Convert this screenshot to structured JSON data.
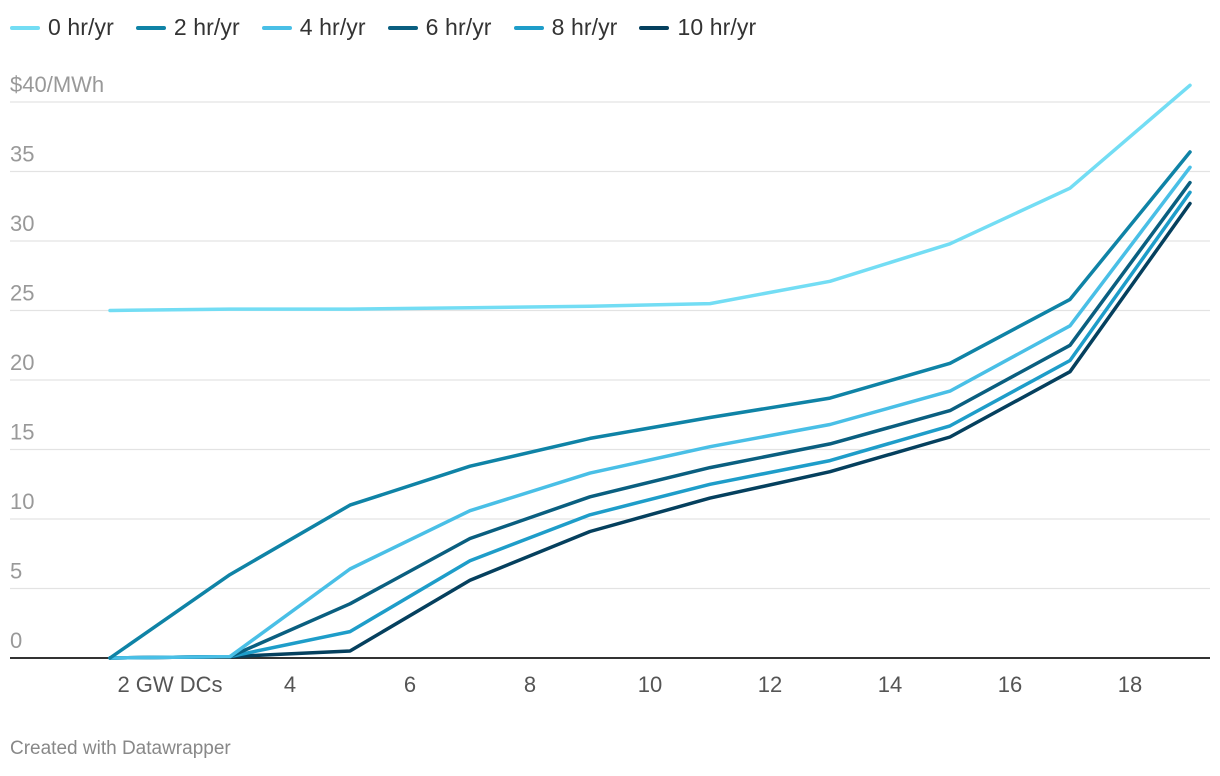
{
  "chart_data": {
    "type": "line",
    "title": "",
    "xlabel": "",
    "ylabel": "",
    "x": [
      1,
      3,
      5,
      7,
      9,
      11,
      13,
      15,
      17,
      19
    ],
    "xlim": [
      0,
      20
    ],
    "ylim": [
      0,
      40
    ],
    "y_ticks": [
      0,
      5,
      10,
      15,
      20,
      25,
      30,
      35,
      40
    ],
    "y_tick_labels": [
      "0",
      "5",
      "10",
      "15",
      "20",
      "25",
      "30",
      "35",
      "$40/MWh"
    ],
    "x_ticks": [
      2,
      4,
      6,
      8,
      10,
      12,
      14,
      16,
      18
    ],
    "x_tick_labels": [
      "2 GW DCs",
      "4",
      "6",
      "8",
      "10",
      "12",
      "14",
      "16",
      "18"
    ],
    "grid": true,
    "legend_position": "top-left",
    "series": [
      {
        "name": "0 hr/yr",
        "color": "#73DDF4",
        "values": [
          25.0,
          25.1,
          25.1,
          25.2,
          25.3,
          25.5,
          27.1,
          29.8,
          33.8,
          41.2
        ]
      },
      {
        "name": "2 hr/yr",
        "color": "#0F83A6",
        "values": [
          0.0,
          6.0,
          11.0,
          13.8,
          15.8,
          17.3,
          18.7,
          21.2,
          25.8,
          36.4
        ]
      },
      {
        "name": "4 hr/yr",
        "color": "#49BFE6",
        "values": [
          0.0,
          0.1,
          6.4,
          10.6,
          13.3,
          15.2,
          16.8,
          19.2,
          23.9,
          35.3
        ]
      },
      {
        "name": "6 hr/yr",
        "color": "#0A5F80",
        "values": [
          0.0,
          0.1,
          3.9,
          8.6,
          11.6,
          13.7,
          15.4,
          17.8,
          22.5,
          34.2
        ]
      },
      {
        "name": "8 hr/yr",
        "color": "#1E9DC9",
        "values": [
          0.0,
          0.1,
          1.9,
          7.0,
          10.3,
          12.5,
          14.2,
          16.7,
          21.4,
          33.5
        ]
      },
      {
        "name": "10 hr/yr",
        "color": "#05405E",
        "values": [
          0.0,
          0.1,
          0.5,
          5.6,
          9.1,
          11.5,
          13.4,
          15.9,
          20.6,
          32.7
        ]
      }
    ]
  },
  "footer": {
    "credit": "Created with Datawrapper"
  }
}
